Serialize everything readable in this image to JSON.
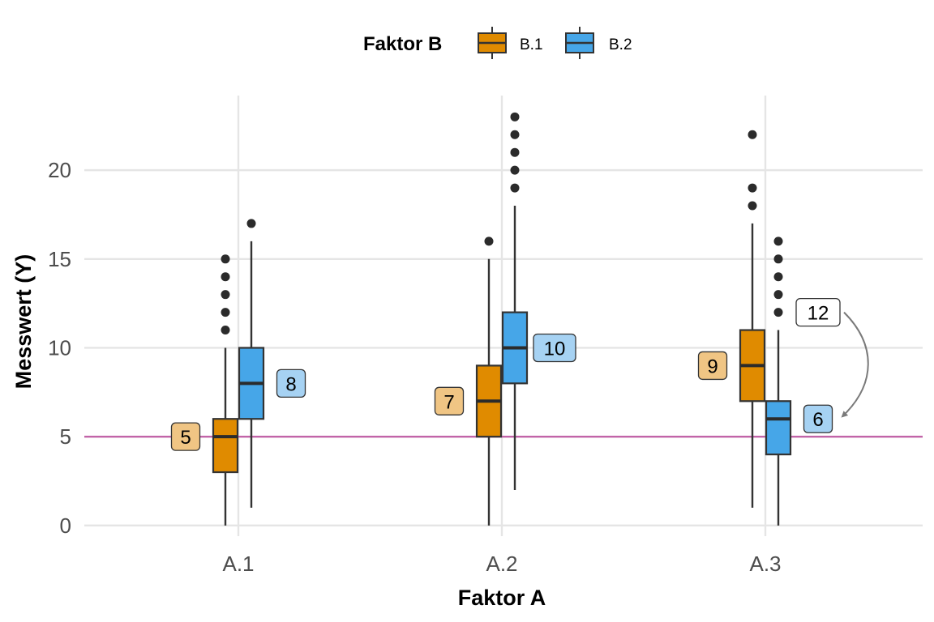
{
  "chart_data": {
    "type": "boxplot",
    "title": "",
    "xlabel": "Faktor A",
    "ylabel": "Messwert (Y)",
    "categories": [
      "A.1",
      "A.2",
      "A.3"
    ],
    "ylim": [
      -0.6,
      24.2
    ],
    "yticks": [
      0,
      5,
      10,
      15,
      20
    ],
    "grid": true,
    "legend": {
      "title": "Faktor B",
      "position": "top",
      "entries": [
        "B.1",
        "B.2"
      ]
    },
    "reference_line": {
      "y": 5,
      "color": "#C264A8"
    },
    "series": [
      {
        "name": "B.1",
        "color": "#E08B00",
        "label_fill": "#F0C584",
        "boxes": [
          {
            "category": "A.1",
            "whisker_low": 0,
            "q1": 3,
            "median": 5,
            "q3": 6,
            "whisker_high": 10,
            "outliers": [
              11,
              12,
              13,
              14,
              15
            ],
            "label": "5",
            "label_y": 5
          },
          {
            "category": "A.2",
            "whisker_low": 0,
            "q1": 5,
            "median": 7,
            "q3": 9,
            "whisker_high": 15,
            "outliers": [
              16
            ],
            "label": "7",
            "label_y": 7
          },
          {
            "category": "A.3",
            "whisker_low": 1,
            "q1": 7,
            "median": 9,
            "q3": 11,
            "whisker_high": 17,
            "outliers": [
              18,
              19,
              22
            ],
            "label": "9",
            "label_y": 9
          }
        ]
      },
      {
        "name": "B.2",
        "color": "#46A6E8",
        "label_fill": "#A6D2F3",
        "boxes": [
          {
            "category": "A.1",
            "whisker_low": 1,
            "q1": 6,
            "median": 8,
            "q3": 10,
            "whisker_high": 16,
            "outliers": [
              17
            ],
            "label": "8",
            "label_y": 8
          },
          {
            "category": "A.2",
            "whisker_low": 2,
            "q1": 8,
            "median": 10,
            "q3": 12,
            "whisker_high": 18,
            "outliers": [
              19,
              20,
              21,
              22,
              23
            ],
            "label": "10",
            "label_y": 10
          },
          {
            "category": "A.3",
            "whisker_low": 0,
            "q1": 4,
            "median": 6,
            "q3": 7,
            "whisker_high": 11,
            "outliers": [
              12,
              13,
              14,
              15,
              16
            ],
            "label": "6",
            "label_y": 6
          }
        ]
      }
    ],
    "annotation": {
      "text": "12",
      "category": "A.3",
      "y": 12,
      "arrow_to_y": 6
    }
  }
}
